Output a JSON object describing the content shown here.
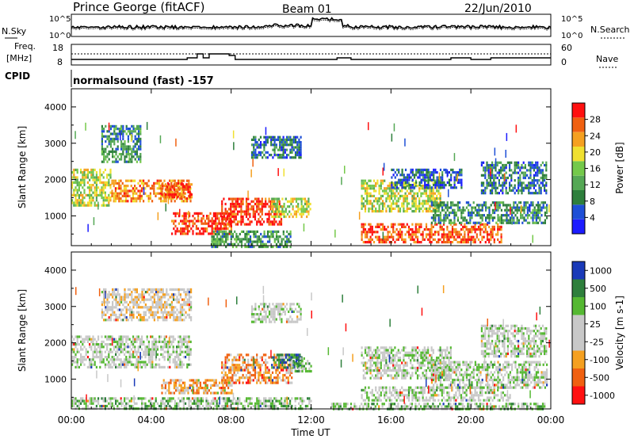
{
  "header": {
    "station": "Prince George (fitACF)",
    "beam": "Beam 01",
    "date": "22/Jun/2010"
  },
  "noise_panel": {
    "left_label": "N.Sky",
    "right_label": "N.Search",
    "ticks_left": [
      "10^5",
      "10^0"
    ],
    "ticks_right": [
      "10^5",
      "10^0"
    ]
  },
  "freq_panel": {
    "label_line1": "Freq.",
    "label_line2": "[MHz]",
    "ticks_left": [
      "18",
      "8"
    ],
    "ticks_right": [
      "60",
      "0"
    ],
    "right_label": "Nave",
    "cpid_label": "CPID"
  },
  "cpid_text": "normalsound (fast) -157",
  "colors": {
    "power": [
      "#1c1cff",
      "#1e4fd6",
      "#2e7f3c",
      "#55a855",
      "#74c94a",
      "#f0e030",
      "#f5a020",
      "#f06010",
      "#ff1010"
    ],
    "velocity": [
      "#1a3ab8",
      "#2e7f3c",
      "#55b832",
      "#c8c8c8",
      "#c8c8c8",
      "#f5a020",
      "#f06010",
      "#ff1010"
    ]
  },
  "chart_data": [
    {
      "type": "heatmap",
      "title": "Power",
      "xlabel": "Time UT",
      "ylabel": "Slant Range [km]",
      "x_ticks": [
        "00:00",
        "04:00",
        "08:00",
        "12:00",
        "16:00",
        "20:00",
        "00:00"
      ],
      "xlim": [
        0,
        24
      ],
      "ylim": [
        180,
        4500
      ],
      "y_ticks": [
        1000,
        2000,
        3000,
        4000
      ],
      "colorbar": {
        "label": "Power [dB]",
        "ticks": [
          "4",
          "8",
          "12",
          "16",
          "20",
          "24",
          "28"
        ]
      },
      "regions": [
        {
          "t0": 0.0,
          "t1": 2.0,
          "r0": 1300,
          "r1": 2300,
          "level": 0.55
        },
        {
          "t0": 1.5,
          "t1": 3.5,
          "r0": 2500,
          "r1": 3500,
          "level": 0.3
        },
        {
          "t0": 2.0,
          "t1": 6.0,
          "r0": 1400,
          "r1": 2000,
          "level": 0.75
        },
        {
          "t0": 4.5,
          "t1": 6.0,
          "r0": 1500,
          "r1": 1900,
          "level": 0.85
        },
        {
          "t0": 5.0,
          "t1": 8.0,
          "r0": 500,
          "r1": 1100,
          "level": 0.9
        },
        {
          "t0": 7.5,
          "t1": 10.5,
          "r0": 800,
          "r1": 1500,
          "level": 0.92
        },
        {
          "t0": 10.0,
          "t1": 12.0,
          "r0": 1000,
          "r1": 1500,
          "level": 0.55
        },
        {
          "t0": 7.0,
          "t1": 11.0,
          "r0": 180,
          "r1": 600,
          "level": 0.35
        },
        {
          "t0": 9.0,
          "t1": 11.5,
          "r0": 2600,
          "r1": 3200,
          "level": 0.25
        },
        {
          "t0": 14.5,
          "t1": 18.5,
          "r0": 1100,
          "r1": 2000,
          "level": 0.55
        },
        {
          "t0": 14.5,
          "t1": 21.5,
          "r0": 300,
          "r1": 800,
          "level": 0.85
        },
        {
          "t0": 18.0,
          "t1": 23.8,
          "r0": 800,
          "r1": 1400,
          "level": 0.3
        },
        {
          "t0": 20.5,
          "t1": 23.8,
          "r0": 1600,
          "r1": 2500,
          "level": 0.25
        },
        {
          "t0": 16.0,
          "t1": 19.5,
          "r0": 1800,
          "r1": 2300,
          "level": 0.2
        }
      ]
    },
    {
      "type": "heatmap",
      "title": "Velocity",
      "xlabel": "Time UT",
      "ylabel": "Slant Range [km]",
      "x_ticks": [
        "00:00",
        "04:00",
        "08:00",
        "12:00",
        "16:00",
        "20:00",
        "00:00"
      ],
      "xlim": [
        0,
        24
      ],
      "ylim": [
        180,
        4500
      ],
      "y_ticks": [
        1000,
        2000,
        3000,
        4000
      ],
      "colorbar": {
        "label": "Velocity [m s-1]",
        "ticks": [
          "1000",
          "500",
          "100",
          "25",
          "-25",
          "-100",
          "-500",
          "-1000"
        ]
      },
      "regions": [
        {
          "t0": 0.0,
          "t1": 6.0,
          "r0": 1300,
          "r1": 2200,
          "level": 0.45
        },
        {
          "t0": 1.5,
          "t1": 6.0,
          "r0": 2600,
          "r1": 3500,
          "level": 0.55
        },
        {
          "t0": 4.5,
          "t1": 8.0,
          "r0": 600,
          "r1": 1000,
          "level": 0.7
        },
        {
          "t0": 7.5,
          "t1": 11.0,
          "r0": 900,
          "r1": 1700,
          "level": 0.72
        },
        {
          "t0": 10.0,
          "t1": 11.5,
          "r0": 1300,
          "r1": 1700,
          "level": 0.15
        },
        {
          "t0": 11.0,
          "t1": 12.0,
          "r0": 1200,
          "r1": 1600,
          "level": 0.3
        },
        {
          "t0": 0.0,
          "t1": 12.0,
          "r0": 180,
          "r1": 500,
          "level": 0.35
        },
        {
          "t0": 9.0,
          "t1": 11.5,
          "r0": 2600,
          "r1": 3100,
          "level": 0.45
        },
        {
          "t0": 14.5,
          "t1": 19.0,
          "r0": 1000,
          "r1": 1900,
          "level": 0.45
        },
        {
          "t0": 14.5,
          "t1": 22.0,
          "r0": 400,
          "r1": 800,
          "level": 0.45
        },
        {
          "t0": 18.0,
          "t1": 23.8,
          "r0": 800,
          "r1": 1500,
          "level": 0.45
        },
        {
          "t0": 20.5,
          "t1": 23.8,
          "r0": 1600,
          "r1": 2500,
          "level": 0.45
        },
        {
          "t0": 13.0,
          "t1": 23.8,
          "r0": 180,
          "r1": 350,
          "level": 0.35
        }
      ]
    }
  ]
}
